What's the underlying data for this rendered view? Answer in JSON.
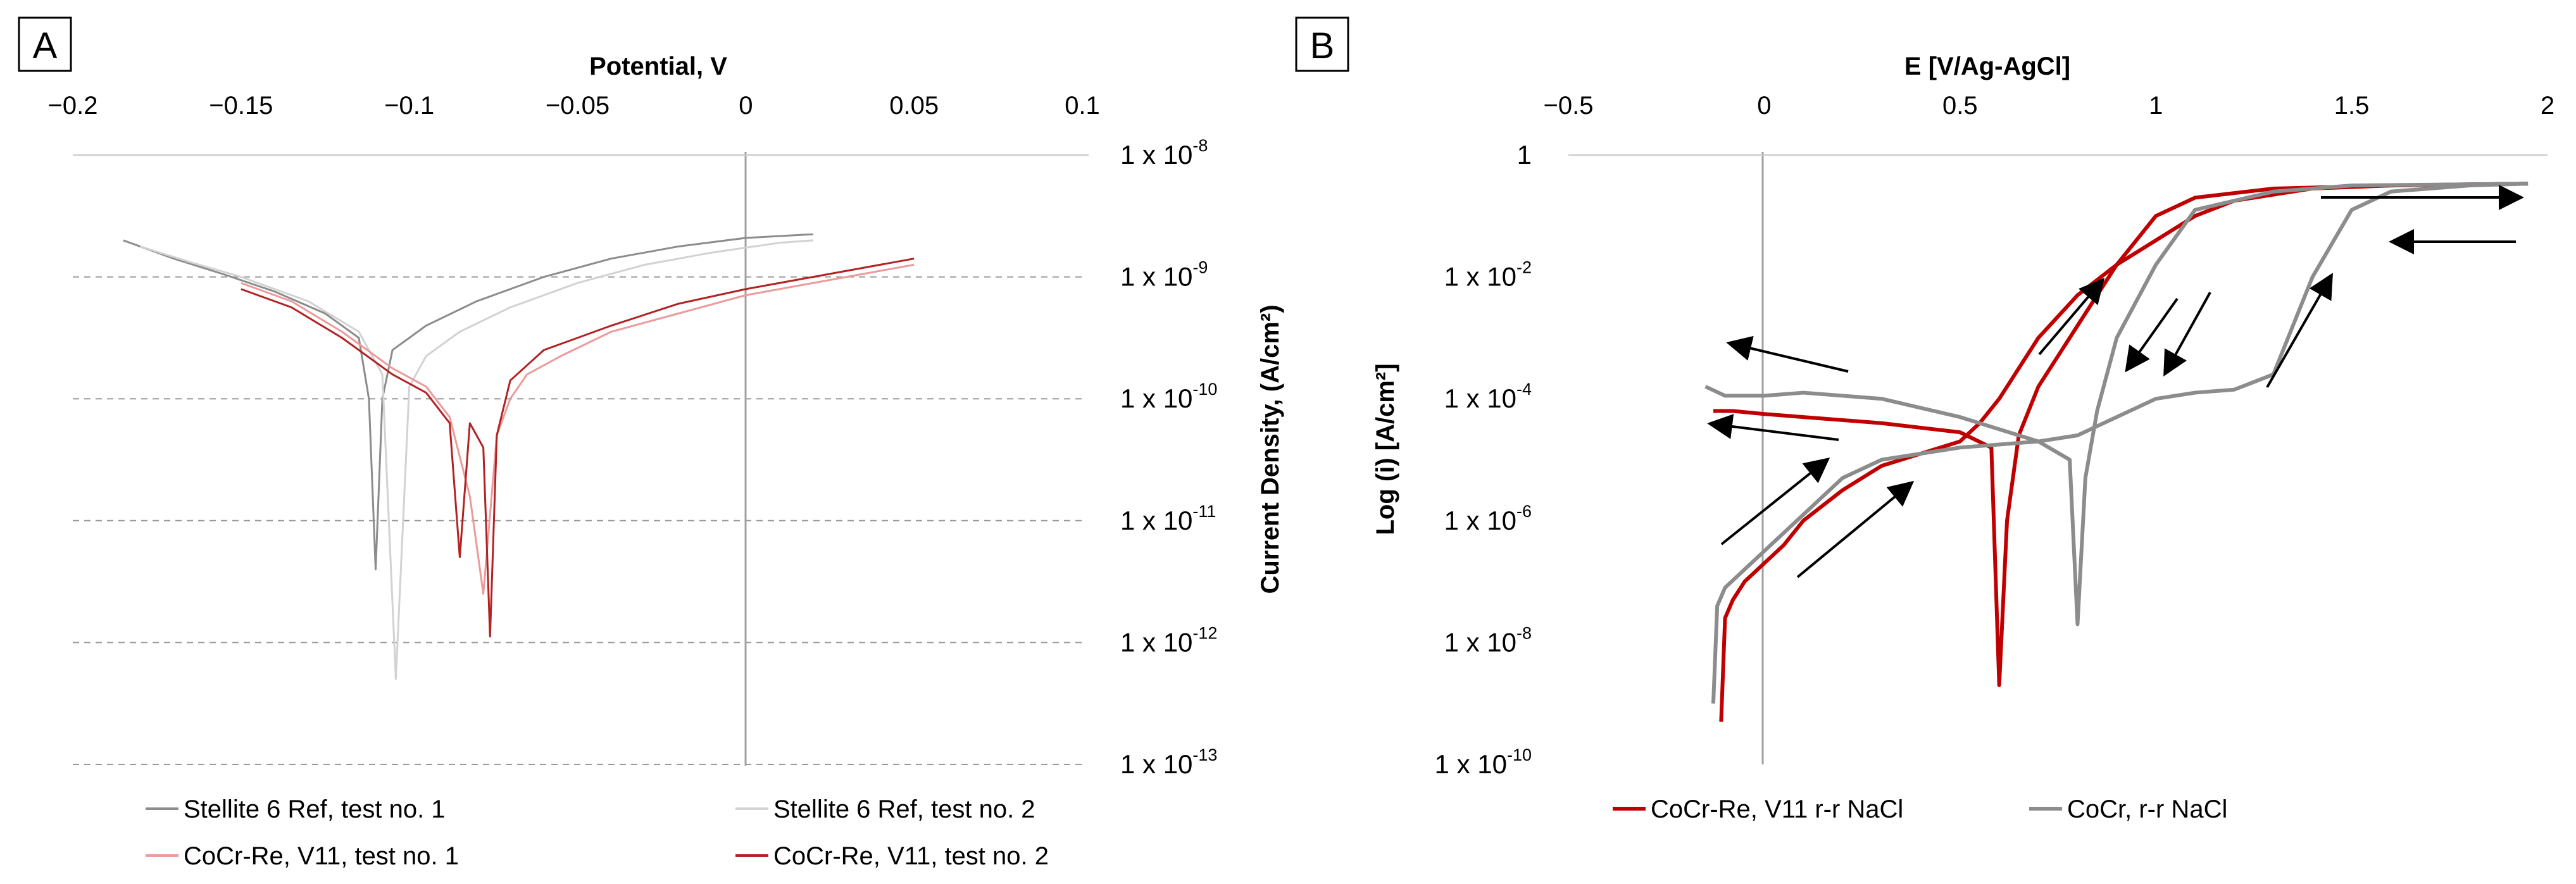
{
  "chart_data": [
    {
      "panel": "A",
      "type": "line",
      "xlabel": "Potential, V",
      "ylabel": "Current Density, (A/cm²)",
      "xlim": [
        -0.2,
        0.1
      ],
      "ylim_log10": [
        -13,
        -8
      ],
      "x_ticks": [
        "−0.2",
        "−0.15",
        "−0.1",
        "−0.05",
        "0",
        "0.05",
        "0.1"
      ],
      "y_ticks": [
        {
          "base": "1 x 10",
          "exp": "-8"
        },
        {
          "base": "1 x 10",
          "exp": "-9"
        },
        {
          "base": "1 x 10",
          "exp": "-10"
        },
        {
          "base": "1 x 10",
          "exp": "-11"
        },
        {
          "base": "1 x 10",
          "exp": "-12"
        },
        {
          "base": "1 x 10",
          "exp": "-13"
        }
      ],
      "grid": "dashed horizontal",
      "series": [
        {
          "name": "Stellite 6 Ref, test no. 1",
          "color": "#8c8c8c",
          "x": [
            -0.185,
            -0.17,
            -0.155,
            -0.14,
            -0.125,
            -0.115,
            -0.112,
            -0.11,
            -0.108,
            -0.105,
            -0.095,
            -0.08,
            -0.06,
            -0.04,
            -0.02,
            0.0,
            0.02
          ],
          "log_i": [
            -8.7,
            -8.85,
            -8.98,
            -9.12,
            -9.3,
            -9.5,
            -10.0,
            -11.4,
            -10.0,
            -9.6,
            -9.4,
            -9.2,
            -9.0,
            -8.85,
            -8.75,
            -8.68,
            -8.65
          ]
        },
        {
          "name": "Stellite 6 Ref, test no. 2",
          "color": "#d2d2d2",
          "x": [
            -0.18,
            -0.165,
            -0.15,
            -0.13,
            -0.115,
            -0.108,
            -0.104,
            -0.1,
            -0.095,
            -0.085,
            -0.07,
            -0.05,
            -0.03,
            -0.01,
            0.01,
            0.02
          ],
          "log_i": [
            -8.75,
            -8.88,
            -9.0,
            -9.2,
            -9.45,
            -9.8,
            -12.3,
            -9.9,
            -9.65,
            -9.45,
            -9.25,
            -9.05,
            -8.9,
            -8.8,
            -8.72,
            -8.7
          ]
        },
        {
          "name": "CoCr-Re, V11, test no. 1",
          "color": "#ec9a9a",
          "x": [
            -0.15,
            -0.135,
            -0.12,
            -0.105,
            -0.095,
            -0.088,
            -0.082,
            -0.078,
            -0.074,
            -0.07,
            -0.065,
            -0.055,
            -0.04,
            -0.02,
            0.0,
            0.02,
            0.05
          ],
          "log_i": [
            -9.05,
            -9.2,
            -9.45,
            -9.75,
            -9.9,
            -10.15,
            -10.8,
            -11.6,
            -10.3,
            -10.0,
            -9.8,
            -9.65,
            -9.45,
            -9.3,
            -9.15,
            -9.05,
            -8.9
          ]
        },
        {
          "name": "CoCr-Re, V11, test no. 2",
          "color": "#b22222",
          "x": [
            -0.15,
            -0.135,
            -0.12,
            -0.105,
            -0.095,
            -0.088,
            -0.085,
            -0.082,
            -0.078,
            -0.076,
            -0.074,
            -0.07,
            -0.06,
            -0.04,
            -0.02,
            0.0,
            0.02,
            0.05
          ],
          "log_i": [
            -9.1,
            -9.25,
            -9.5,
            -9.8,
            -9.95,
            -10.2,
            -11.3,
            -10.2,
            -10.4,
            -11.95,
            -10.3,
            -9.85,
            -9.6,
            -9.4,
            -9.22,
            -9.1,
            -9.0,
            -8.85
          ]
        }
      ],
      "legend": "bottom"
    },
    {
      "panel": "B",
      "type": "line",
      "xlabel": "E [V/Ag-AgCl]",
      "ylabel": "Log (i) [A/cm²]",
      "xlim": [
        -0.5,
        2.0
      ],
      "ylim_log10": [
        -10,
        0
      ],
      "x_ticks": [
        "−0.5",
        "0",
        "0.5",
        "1",
        "1.5",
        "2"
      ],
      "y_ticks": [
        {
          "base": "1",
          "exp": ""
        },
        {
          "base": "1 x 10",
          "exp": "-2"
        },
        {
          "base": "1 x 10",
          "exp": "-4"
        },
        {
          "base": "1 x 10",
          "exp": "-6"
        },
        {
          "base": "1 x 10",
          "exp": "-8"
        },
        {
          "base": "1 x 10",
          "exp": "-10"
        }
      ],
      "series": [
        {
          "name": "CoCr-Re, V11 r-r NaCl",
          "color": "#c00000",
          "forward": {
            "x": [
              -0.11,
              -0.1,
              -0.08,
              -0.05,
              0.0,
              0.05,
              0.1,
              0.2,
              0.3,
              0.4,
              0.5,
              0.55,
              0.6,
              0.65,
              0.7,
              0.8,
              0.9,
              1.0,
              1.1,
              1.2,
              1.4,
              1.6,
              1.8,
              1.95
            ],
            "log_i": [
              -9.3,
              -7.6,
              -7.3,
              -7.0,
              -6.7,
              -6.4,
              -6.0,
              -5.5,
              -5.1,
              -4.9,
              -4.7,
              -4.4,
              -4.0,
              -3.5,
              -3.0,
              -2.3,
              -1.8,
              -1.4,
              -1.0,
              -0.75,
              -0.55,
              -0.5,
              -0.48,
              -0.47
            ]
          },
          "reverse": {
            "x": [
              1.95,
              1.6,
              1.3,
              1.1,
              1.0,
              0.9,
              0.8,
              0.7,
              0.65,
              0.62,
              0.6,
              0.58,
              0.5,
              0.3,
              0.1,
              0.0,
              -0.08,
              -0.13
            ],
            "log_i": [
              -0.47,
              -0.5,
              -0.55,
              -0.7,
              -1.0,
              -1.8,
              -2.8,
              -3.8,
              -4.6,
              -6.0,
              -8.7,
              -4.8,
              -4.55,
              -4.4,
              -4.3,
              -4.25,
              -4.2,
              -4.2
            ]
          }
        },
        {
          "name": "CoCr, r-r NaCl",
          "color": "#8c8c8c",
          "forward": {
            "x": [
              -0.13,
              -0.12,
              -0.1,
              -0.05,
              0.0,
              0.05,
              0.1,
              0.2,
              0.3,
              0.5,
              0.7,
              0.8,
              0.9,
              1.0,
              1.1,
              1.2,
              1.3,
              1.4,
              1.5,
              1.6,
              1.8,
              1.95
            ],
            "log_i": [
              -9.0,
              -7.4,
              -7.1,
              -6.8,
              -6.5,
              -6.2,
              -5.9,
              -5.3,
              -5.0,
              -4.8,
              -4.7,
              -4.6,
              -4.3,
              -4.0,
              -3.9,
              -3.85,
              -3.6,
              -2.0,
              -0.9,
              -0.6,
              -0.5,
              -0.47
            ]
          },
          "reverse": {
            "x": [
              1.95,
              1.5,
              1.3,
              1.1,
              1.0,
              0.9,
              0.85,
              0.82,
              0.8,
              0.78,
              0.7,
              0.5,
              0.3,
              0.1,
              0.0,
              -0.1,
              -0.15
            ],
            "log_i": [
              -0.47,
              -0.5,
              -0.6,
              -0.9,
              -1.8,
              -3.0,
              -4.2,
              -5.3,
              -7.7,
              -5.0,
              -4.7,
              -4.3,
              -4.0,
              -3.9,
              -3.95,
              -3.95,
              -3.8
            ]
          }
        }
      ],
      "legend": "bottom-left"
    }
  ]
}
